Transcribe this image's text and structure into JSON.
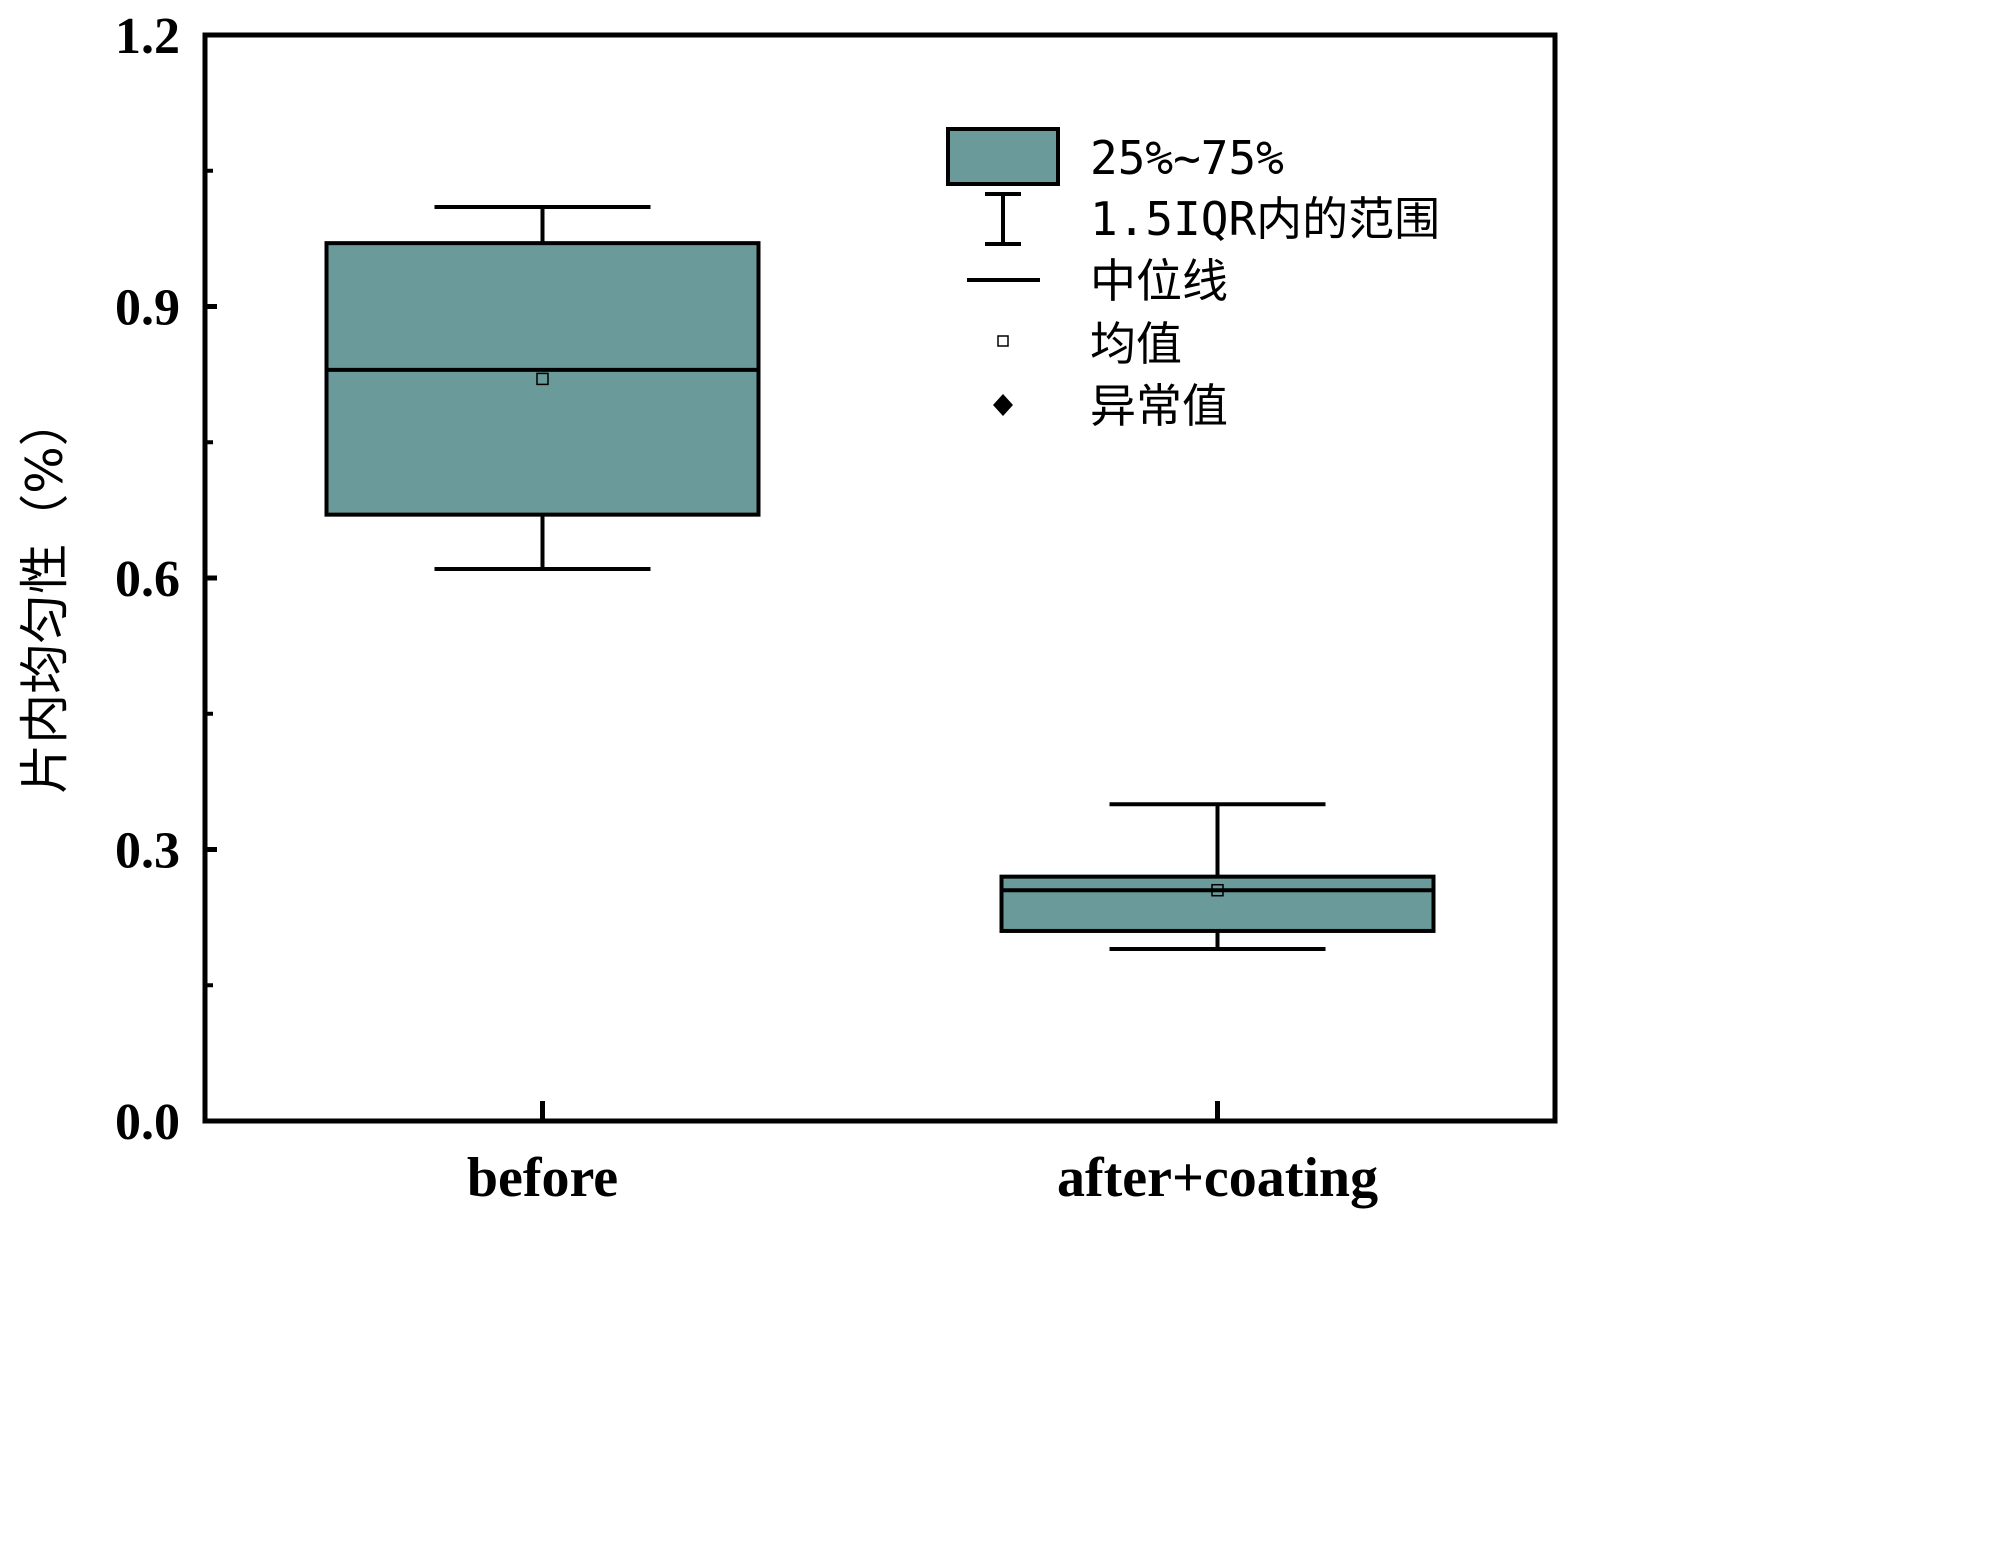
{
  "chart_data": {
    "type": "box",
    "ylabel": "片内均匀性（%）",
    "ylim": [
      0,
      1.2
    ],
    "yticks": [
      "0.0",
      "0.3",
      "0.6",
      "0.9",
      "1.2"
    ],
    "categories": [
      "before",
      "after+coating"
    ],
    "boxes": [
      {
        "category": "before",
        "whisker_low": 0.61,
        "q1": 0.67,
        "median": 0.83,
        "q3": 0.97,
        "whisker_high": 1.01,
        "mean": 0.82
      },
      {
        "category": "after+coating",
        "whisker_low": 0.19,
        "q1": 0.21,
        "median": 0.255,
        "q3": 0.27,
        "whisker_high": 0.35,
        "mean": 0.255
      }
    ],
    "legend": {
      "position": "top-right",
      "items": [
        {
          "key": "box",
          "label": "25%~75%"
        },
        {
          "key": "whisker",
          "label": "1.5IQR内的范围"
        },
        {
          "key": "median",
          "label": "中位线"
        },
        {
          "key": "mean",
          "label": "均值"
        },
        {
          "key": "outlier",
          "label": "异常值"
        }
      ]
    },
    "colors": {
      "box_fill": "#6a9a9a",
      "line": "#000000"
    }
  }
}
